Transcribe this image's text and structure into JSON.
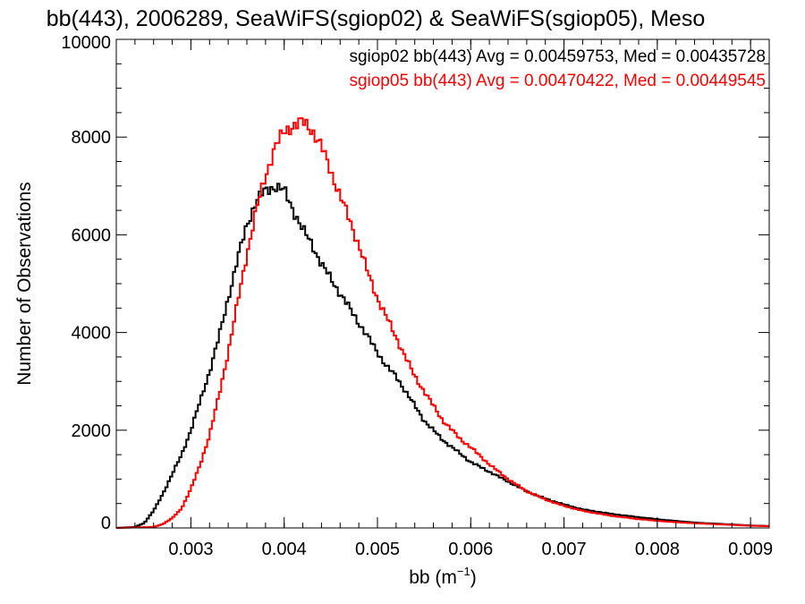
{
  "chart_data": {
    "type": "line",
    "step": true,
    "title": "bb(443), 2006289, SeaWiFS(sgiop02) & SeaWiFS(sgiop05), Meso",
    "xlabel_main": "bb (m",
    "xlabel_exp": "−1",
    "xlabel_close": ")",
    "ylabel": "Number of Observations",
    "xlim": [
      0.0022,
      0.0092
    ],
    "ylim": [
      0,
      10000
    ],
    "xticks": [
      {
        "value": 0.003,
        "label": "0.003"
      },
      {
        "value": 0.004,
        "label": "0.004"
      },
      {
        "value": 0.005,
        "label": "0.005"
      },
      {
        "value": 0.006,
        "label": "0.006"
      },
      {
        "value": 0.007,
        "label": "0.007"
      },
      {
        "value": 0.008,
        "label": "0.008"
      },
      {
        "value": 0.009,
        "label": "0.009"
      }
    ],
    "yticks": [
      {
        "value": 0,
        "label": "0"
      },
      {
        "value": 2000,
        "label": "2000"
      },
      {
        "value": 4000,
        "label": "4000"
      },
      {
        "value": 6000,
        "label": "6000"
      },
      {
        "value": 8000,
        "label": "8000"
      },
      {
        "value": 10000,
        "label": "10000"
      }
    ],
    "grid": false,
    "series": [
      {
        "name": "sgiop02",
        "color": "#000000",
        "legend": "sgiop02 bb(443) Avg = 0.00459753, Med = 0.00435728",
        "x": [
          0.0022,
          0.0024,
          0.0025,
          0.0026,
          0.0027,
          0.0028,
          0.0029,
          0.003,
          0.0031,
          0.0032,
          0.0033,
          0.0034,
          0.0035,
          0.0036,
          0.0037,
          0.0038,
          0.0039,
          0.004,
          0.0041,
          0.0042,
          0.0043,
          0.0044,
          0.0045,
          0.0046,
          0.0047,
          0.0048,
          0.0049,
          0.005,
          0.0051,
          0.0052,
          0.0053,
          0.0054,
          0.0055,
          0.0056,
          0.0057,
          0.0058,
          0.0059,
          0.006,
          0.0062,
          0.0064,
          0.0066,
          0.0068,
          0.007,
          0.0072,
          0.0075,
          0.0078,
          0.0081,
          0.0084,
          0.0087,
          0.009,
          0.0092
        ],
        "y": [
          0,
          20,
          100,
          350,
          700,
          1100,
          1500,
          2000,
          2600,
          3200,
          3900,
          4700,
          5500,
          6200,
          6700,
          6900,
          7000,
          6900,
          6500,
          6100,
          5800,
          5400,
          5100,
          4800,
          4500,
          4200,
          3900,
          3600,
          3300,
          3100,
          2800,
          2500,
          2200,
          2000,
          1800,
          1650,
          1500,
          1350,
          1150,
          950,
          750,
          600,
          480,
          380,
          290,
          220,
          160,
          110,
          80,
          50,
          40
        ]
      },
      {
        "name": "sgiop05",
        "color": "#ff0000",
        "legend": "sgiop05 bb(443) Avg = 0.00470422, Med = 0.00449545",
        "x": [
          0.0022,
          0.0026,
          0.0027,
          0.0028,
          0.0029,
          0.003,
          0.0031,
          0.0032,
          0.0033,
          0.0034,
          0.0035,
          0.0036,
          0.0037,
          0.0038,
          0.0039,
          0.004,
          0.0041,
          0.0042,
          0.0043,
          0.0044,
          0.0045,
          0.0046,
          0.0047,
          0.0048,
          0.0049,
          0.005,
          0.0051,
          0.0052,
          0.0053,
          0.0054,
          0.0055,
          0.0056,
          0.0057,
          0.0058,
          0.0059,
          0.006,
          0.0062,
          0.0064,
          0.0066,
          0.0068,
          0.007,
          0.0072,
          0.0075,
          0.0078,
          0.0081,
          0.0084,
          0.0087,
          0.009,
          0.0092
        ],
        "y": [
          0,
          20,
          80,
          200,
          400,
          800,
          1300,
          1900,
          2700,
          3600,
          4600,
          5600,
          6500,
          7200,
          7800,
          8100,
          8250,
          8300,
          8150,
          7800,
          7300,
          6800,
          6300,
          5800,
          5200,
          4700,
          4300,
          3900,
          3500,
          3100,
          2800,
          2500,
          2200,
          2000,
          1800,
          1650,
          1300,
          1000,
          750,
          580,
          450,
          350,
          250,
          180,
          130,
          95,
          70,
          45,
          35
        ]
      }
    ]
  }
}
